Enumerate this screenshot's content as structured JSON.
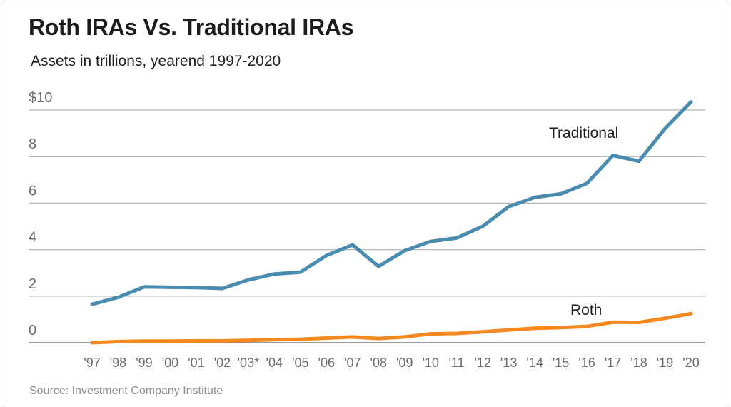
{
  "chart_data": {
    "type": "line",
    "title": "Roth IRAs Vs. Traditional IRAs",
    "subtitle": "Assets in trillions, yearend 1997-2020",
    "source": "Source: Investment Company Institute",
    "x": [
      "'97",
      "'98",
      "'99",
      "'00",
      "'01",
      "'02",
      "'03*",
      "'04",
      "'05",
      "'06",
      "'07",
      "'08",
      "'09",
      "'10",
      "'11",
      "'12",
      "'13",
      "'14",
      "'15",
      "'16",
      "'17",
      "'18",
      "'19",
      "'20"
    ],
    "y_ticks": [
      "0",
      "2",
      "4",
      "6",
      "8",
      "$10"
    ],
    "y_tick_values": [
      0,
      2,
      4,
      6,
      8,
      10
    ],
    "ylim": [
      0,
      10.8
    ],
    "grid": "horizontal",
    "xlabel": "",
    "ylabel": "",
    "series": [
      {
        "name": "Traditional",
        "color": "#4a8bb0",
        "values": [
          1.65,
          1.95,
          2.4,
          2.38,
          2.37,
          2.33,
          2.7,
          2.95,
          3.03,
          3.75,
          4.2,
          3.28,
          3.95,
          4.35,
          4.5,
          5.0,
          5.85,
          6.25,
          6.4,
          6.85,
          8.05,
          7.8,
          9.2,
          10.35
        ]
      },
      {
        "name": "Roth",
        "color": "#f5891f",
        "values": [
          0.0,
          0.05,
          0.07,
          0.07,
          0.08,
          0.08,
          0.1,
          0.13,
          0.15,
          0.2,
          0.25,
          0.18,
          0.25,
          0.38,
          0.4,
          0.47,
          0.55,
          0.62,
          0.65,
          0.7,
          0.88,
          0.87,
          1.05,
          1.25
        ]
      }
    ]
  }
}
